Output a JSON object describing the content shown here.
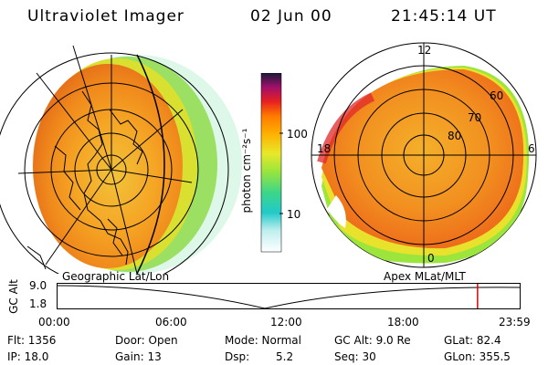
{
  "header": {
    "instrument": "Ultraviolet Imager",
    "date": "02 Jun 00",
    "time": "21:45:14 UT"
  },
  "left_panel": {
    "caption": "Geographic Lat/Lon"
  },
  "right_panel": {
    "caption": "Apex MLat/MLT",
    "mlt_labels": {
      "top": "12",
      "left": "18",
      "right": "6",
      "bottom": "0"
    },
    "lat_labels": [
      "60",
      "70",
      "80"
    ]
  },
  "colorbar": {
    "label": "photon cm⁻²s⁻¹",
    "ticks": [
      "100",
      "10"
    ],
    "scale": "log",
    "colors": [
      "#ffffff",
      "#8fe6e6",
      "#22c9c9",
      "#3cd68a",
      "#9be53c",
      "#e8e82a",
      "#ffb000",
      "#ff7a00",
      "#e82020",
      "#a0106a",
      "#5b1d8c",
      "#1a1a3a"
    ]
  },
  "timeline": {
    "axis_label": "GC Alt",
    "y_ticks": [
      "9.0",
      "1.8"
    ],
    "x_ticks": [
      "00:00",
      "06:00",
      "12:00",
      "18:00",
      "23:59"
    ],
    "current_time_fraction": 0.908
  },
  "footer": {
    "col1": [
      "Flt: 1356",
      "IP: 18.0"
    ],
    "col2": [
      "Door: Open",
      "Gain: 13"
    ],
    "col3": [
      "Mode: Normal",
      "Dsp:",
      "5.2"
    ],
    "col4": [
      "GC Alt: 9.0 Re",
      "Seq: 30"
    ],
    "col5": [
      "GLat: 82.4",
      "GLon: 355.5"
    ]
  }
}
